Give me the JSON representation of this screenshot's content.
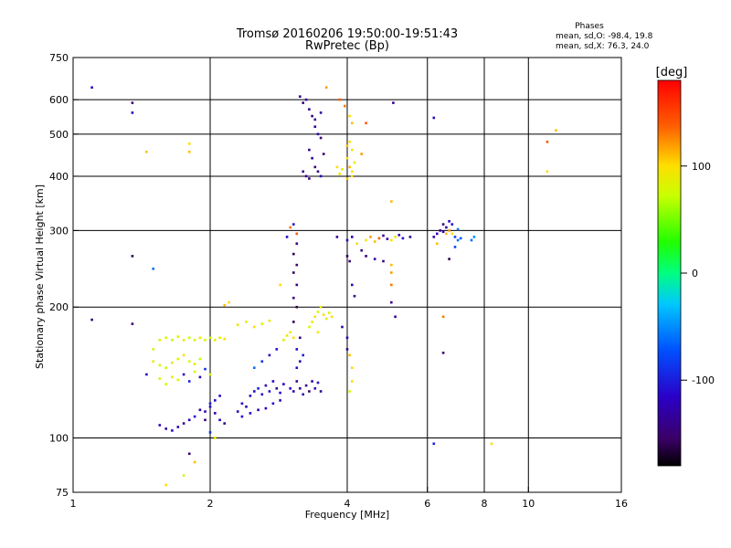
{
  "chart_data": {
    "type": "scatter",
    "title": "Tromsø 20160206 19:50:00-19:51:43",
    "subtitle": "RwPretec (Bp)",
    "phases_title": "Phases",
    "phases_line1": "mean, sd,O: -98.4, 19.8",
    "phases_line2": "mean, sd,X: 76.3, 24.0",
    "xlabel": "Frequency [MHz]",
    "ylabel": "Stationary phase Virtual Height [km]",
    "x_scale": "log",
    "y_scale": "log",
    "xlim": [
      1,
      16
    ],
    "ylim": [
      75,
      750
    ],
    "x_ticks": [
      1,
      2,
      4,
      6,
      8,
      10,
      16
    ],
    "y_ticks": [
      75,
      100,
      200,
      300,
      400,
      500,
      600,
      750
    ],
    "x_grid": [
      2,
      4,
      6,
      8,
      10
    ],
    "y_grid": [
      100,
      200,
      300,
      400,
      500,
      600
    ],
    "grid": true,
    "colorbar": {
      "label": "[deg]",
      "range": [
        -180,
        180
      ],
      "ticks": [
        100,
        0,
        -100
      ],
      "colormap": "rainbow"
    },
    "points": [
      [
        1.1,
        640,
        -120
      ],
      [
        1.35,
        590,
        -150
      ],
      [
        1.35,
        560,
        -120
      ],
      [
        1.45,
        455,
        110
      ],
      [
        1.8,
        475,
        100
      ],
      [
        1.8,
        455,
        110
      ],
      [
        1.35,
        262,
        -160
      ],
      [
        1.5,
        245,
        -60
      ],
      [
        1.1,
        187,
        -140
      ],
      [
        1.35,
        183,
        -150
      ],
      [
        1.45,
        140,
        -110
      ],
      [
        1.5,
        160,
        80
      ],
      [
        1.55,
        168,
        80
      ],
      [
        1.6,
        170,
        80
      ],
      [
        1.65,
        168,
        70
      ],
      [
        1.7,
        171,
        80
      ],
      [
        1.75,
        168,
        90
      ],
      [
        1.8,
        170,
        70
      ],
      [
        1.85,
        168,
        80
      ],
      [
        1.9,
        170,
        90
      ],
      [
        1.95,
        168,
        80
      ],
      [
        2.0,
        170,
        70
      ],
      [
        2.05,
        168,
        90
      ],
      [
        2.1,
        170,
        80
      ],
      [
        2.15,
        169,
        100
      ],
      [
        1.5,
        150,
        90
      ],
      [
        1.55,
        147,
        80
      ],
      [
        1.6,
        145,
        70
      ],
      [
        1.65,
        149,
        90
      ],
      [
        1.7,
        152,
        80
      ],
      [
        1.75,
        155,
        100
      ],
      [
        1.8,
        150,
        80
      ],
      [
        1.85,
        148,
        90
      ],
      [
        1.9,
        152,
        70
      ],
      [
        1.55,
        137,
        80
      ],
      [
        1.6,
        133,
        70
      ],
      [
        1.65,
        138,
        90
      ],
      [
        1.7,
        136,
        80
      ],
      [
        1.75,
        140,
        -110
      ],
      [
        1.8,
        135,
        -100
      ],
      [
        1.85,
        142,
        80
      ],
      [
        1.9,
        138,
        -120
      ],
      [
        1.95,
        144,
        -90
      ],
      [
        2.0,
        140,
        80
      ],
      [
        1.55,
        107,
        -120
      ],
      [
        1.6,
        105,
        -130
      ],
      [
        1.65,
        104,
        -110
      ],
      [
        1.7,
        106,
        -120
      ],
      [
        1.75,
        108,
        -140
      ],
      [
        1.8,
        110,
        -120
      ],
      [
        1.85,
        112,
        -110
      ],
      [
        1.9,
        116,
        -130
      ],
      [
        1.95,
        115,
        -120
      ],
      [
        2.0,
        118,
        -110
      ],
      [
        2.05,
        114,
        -130
      ],
      [
        2.1,
        110,
        -120
      ],
      [
        2.15,
        108,
        -140
      ],
      [
        1.95,
        110,
        -150
      ],
      [
        2.0,
        120,
        -100
      ],
      [
        2.05,
        122,
        -110
      ],
      [
        2.1,
        125,
        -120
      ],
      [
        2.0,
        103,
        -90
      ],
      [
        2.05,
        100,
        90
      ],
      [
        1.8,
        92,
        -150
      ],
      [
        1.85,
        88,
        110
      ],
      [
        1.75,
        82,
        80
      ],
      [
        1.6,
        78,
        100
      ],
      [
        2.2,
        205,
        100
      ],
      [
        2.15,
        202,
        110
      ],
      [
        2.3,
        182,
        90
      ],
      [
        2.4,
        185,
        80
      ],
      [
        2.5,
        180,
        100
      ],
      [
        2.6,
        183,
        80
      ],
      [
        2.7,
        186,
        90
      ],
      [
        2.3,
        115,
        -120
      ],
      [
        2.35,
        120,
        -110
      ],
      [
        2.4,
        118,
        -130
      ],
      [
        2.45,
        125,
        -120
      ],
      [
        2.5,
        128,
        -110
      ],
      [
        2.55,
        130,
        -100
      ],
      [
        2.6,
        126,
        -120
      ],
      [
        2.65,
        132,
        -130
      ],
      [
        2.7,
        128,
        -110
      ],
      [
        2.75,
        135,
        -120
      ],
      [
        2.8,
        130,
        -140
      ],
      [
        2.85,
        127,
        -110
      ],
      [
        2.9,
        133,
        -120
      ],
      [
        2.35,
        112,
        -110
      ],
      [
        2.45,
        114,
        -120
      ],
      [
        2.55,
        116,
        -130
      ],
      [
        2.65,
        117,
        -120
      ],
      [
        2.75,
        120,
        -110
      ],
      [
        2.85,
        122,
        -120
      ],
      [
        2.5,
        145,
        -60
      ],
      [
        2.6,
        150,
        -90
      ],
      [
        2.7,
        155,
        -120
      ],
      [
        2.8,
        160,
        -110
      ],
      [
        2.9,
        168,
        80
      ],
      [
        2.95,
        172,
        90
      ],
      [
        3.0,
        175,
        90
      ],
      [
        3.05,
        170,
        100
      ],
      [
        3.0,
        130,
        -120
      ],
      [
        3.05,
        128,
        -130
      ],
      [
        3.1,
        135,
        -140
      ],
      [
        3.15,
        130,
        -130
      ],
      [
        3.2,
        126,
        -120
      ],
      [
        3.25,
        132,
        -140
      ],
      [
        3.3,
        128,
        -150
      ],
      [
        3.35,
        135,
        -130
      ],
      [
        3.4,
        130,
        -120
      ],
      [
        3.45,
        134,
        -110
      ],
      [
        3.5,
        128,
        -130
      ],
      [
        3.1,
        145,
        -110
      ],
      [
        3.15,
        150,
        -120
      ],
      [
        3.2,
        155,
        -100
      ],
      [
        3.1,
        160,
        -110
      ],
      [
        3.15,
        170,
        -150
      ],
      [
        3.05,
        185,
        -160
      ],
      [
        3.1,
        200,
        -160
      ],
      [
        3.05,
        210,
        -150
      ],
      [
        3.1,
        225,
        -140
      ],
      [
        3.05,
        240,
        -160
      ],
      [
        3.1,
        250,
        -150
      ],
      [
        3.05,
        265,
        -160
      ],
      [
        3.1,
        280,
        -140
      ],
      [
        3.05,
        310,
        -100
      ],
      [
        3.1,
        295,
        140
      ],
      [
        3.0,
        305,
        130
      ],
      [
        2.95,
        290,
        -120
      ],
      [
        2.85,
        225,
        100
      ],
      [
        3.3,
        180,
        80
      ],
      [
        3.35,
        185,
        90
      ],
      [
        3.4,
        190,
        100
      ],
      [
        3.45,
        195,
        80
      ],
      [
        3.5,
        200,
        90
      ],
      [
        3.55,
        192,
        100
      ],
      [
        3.6,
        188,
        90
      ],
      [
        3.65,
        194,
        80
      ],
      [
        3.7,
        190,
        100
      ],
      [
        3.45,
        175,
        90
      ],
      [
        3.15,
        610,
        -140
      ],
      [
        3.2,
        590,
        -150
      ],
      [
        3.25,
        600,
        -130
      ],
      [
        3.3,
        570,
        -140
      ],
      [
        3.35,
        550,
        -150
      ],
      [
        3.4,
        520,
        -140
      ],
      [
        3.45,
        500,
        -130
      ],
      [
        3.5,
        490,
        -150
      ],
      [
        3.3,
        460,
        -140
      ],
      [
        3.35,
        440,
        -130
      ],
      [
        3.4,
        420,
        -150
      ],
      [
        3.2,
        410,
        -140
      ],
      [
        3.25,
        400,
        -130
      ],
      [
        3.3,
        395,
        -150
      ],
      [
        3.45,
        410,
        -140
      ],
      [
        3.5,
        400,
        -130
      ],
      [
        3.4,
        540,
        -140
      ],
      [
        3.5,
        560,
        -130
      ],
      [
        3.55,
        450,
        -150
      ],
      [
        3.6,
        640,
        120
      ],
      [
        3.85,
        600,
        140
      ],
      [
        3.95,
        580,
        130
      ],
      [
        4.05,
        550,
        100
      ],
      [
        4.1,
        530,
        110
      ],
      [
        4.05,
        480,
        100
      ],
      [
        4.1,
        460,
        90
      ],
      [
        4.0,
        440,
        100
      ],
      [
        4.05,
        420,
        110
      ],
      [
        4.1,
        400,
        100
      ],
      [
        3.9,
        415,
        90
      ],
      [
        4.0,
        395,
        110
      ],
      [
        4.1,
        410,
        100
      ],
      [
        4.15,
        430,
        90
      ],
      [
        3.8,
        420,
        100
      ],
      [
        3.85,
        405,
        100
      ],
      [
        4.0,
        470,
        110
      ],
      [
        4.3,
        450,
        120
      ],
      [
        4.4,
        530,
        140
      ],
      [
        5.05,
        590,
        -140
      ],
      [
        3.8,
        290,
        -140
      ],
      [
        4.0,
        285,
        -120
      ],
      [
        4.1,
        290,
        -130
      ],
      [
        4.2,
        280,
        100
      ],
      [
        4.4,
        285,
        90
      ],
      [
        4.5,
        290,
        120
      ],
      [
        4.6,
        283,
        110
      ],
      [
        4.7,
        288,
        140
      ],
      [
        4.8,
        292,
        -140
      ],
      [
        4.9,
        287,
        -130
      ],
      [
        5.0,
        285,
        100
      ],
      [
        5.1,
        290,
        90
      ],
      [
        5.2,
        293,
        -120
      ],
      [
        5.3,
        288,
        -110
      ],
      [
        5.5,
        290,
        -140
      ],
      [
        4.3,
        270,
        -140
      ],
      [
        4.4,
        262,
        -150
      ],
      [
        4.6,
        258,
        -130
      ],
      [
        4.8,
        255,
        -150
      ],
      [
        5.0,
        250,
        110
      ],
      [
        5.0,
        240,
        120
      ],
      [
        5.0,
        225,
        130
      ],
      [
        5.0,
        205,
        -140
      ],
      [
        4.0,
        262,
        -160
      ],
      [
        4.05,
        255,
        -150
      ],
      [
        4.1,
        225,
        -120
      ],
      [
        4.15,
        212,
        -140
      ],
      [
        3.9,
        180,
        -130
      ],
      [
        4.0,
        160,
        -140
      ],
      [
        4.05,
        155,
        110
      ],
      [
        4.1,
        145,
        100
      ],
      [
        4.05,
        128,
        80
      ],
      [
        4.1,
        135,
        100
      ],
      [
        4.0,
        170,
        -120
      ],
      [
        6.2,
        290,
        -130
      ],
      [
        6.3,
        295,
        -120
      ],
      [
        6.4,
        300,
        -140
      ],
      [
        6.5,
        298,
        -130
      ],
      [
        6.6,
        295,
        110
      ],
      [
        6.7,
        300,
        120
      ],
      [
        6.8,
        295,
        100
      ],
      [
        6.9,
        290,
        -80
      ],
      [
        7.0,
        285,
        -60
      ],
      [
        7.1,
        288,
        -70
      ],
      [
        7.5,
        285,
        -60
      ],
      [
        7.6,
        290,
        -50
      ],
      [
        6.5,
        310,
        -140
      ],
      [
        6.6,
        305,
        -130
      ],
      [
        6.7,
        315,
        -120
      ],
      [
        6.8,
        310,
        -110
      ],
      [
        6.3,
        280,
        110
      ],
      [
        6.9,
        275,
        -80
      ],
      [
        7.0,
        302,
        -60
      ],
      [
        6.7,
        258,
        -160
      ],
      [
        6.5,
        190,
        130
      ],
      [
        6.5,
        157,
        -150
      ],
      [
        6.2,
        97,
        -100
      ],
      [
        6.2,
        545,
        -120
      ],
      [
        8.3,
        97,
        100
      ],
      [
        11.0,
        480,
        140
      ],
      [
        11.5,
        510,
        110
      ],
      [
        11.0,
        410,
        100
      ],
      [
        5.1,
        190,
        -140
      ],
      [
        5.0,
        350,
        110
      ]
    ]
  }
}
